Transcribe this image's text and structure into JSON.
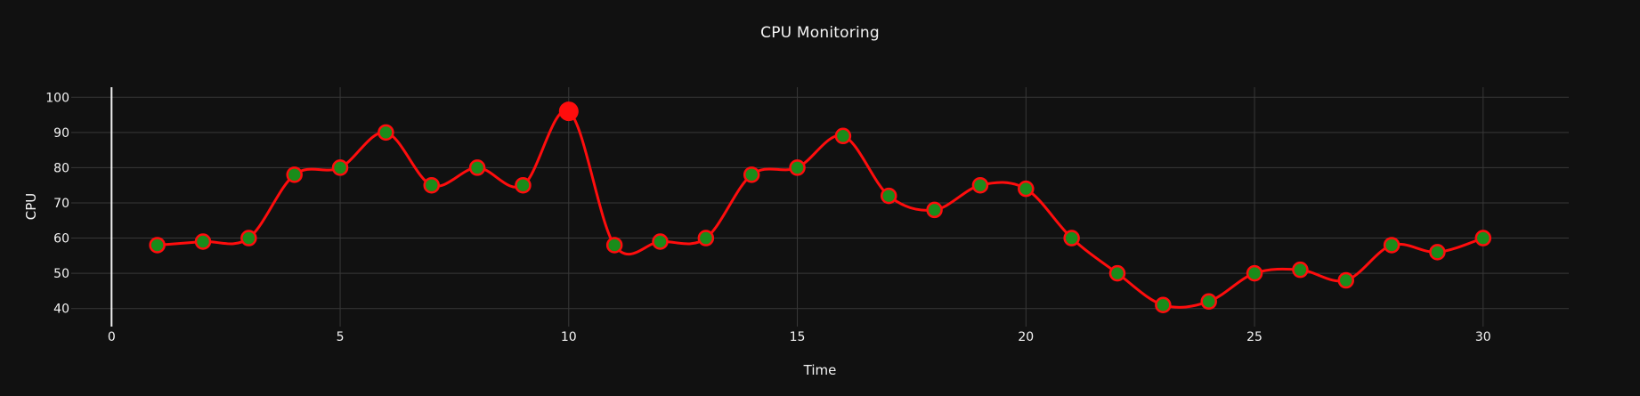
{
  "chart_data": {
    "type": "line",
    "title": "CPU Monitoring",
    "xlabel": "Time",
    "ylabel": "CPU",
    "x": [
      1,
      2,
      3,
      4,
      5,
      6,
      7,
      8,
      9,
      10,
      11,
      12,
      13,
      14,
      15,
      16,
      17,
      18,
      19,
      20,
      21,
      22,
      23,
      24,
      25,
      26,
      27,
      28,
      29,
      30
    ],
    "values": [
      58,
      59,
      60,
      78,
      80,
      90,
      75,
      80,
      75,
      96,
      58,
      59,
      60,
      78,
      80,
      89,
      72,
      68,
      75,
      74,
      60,
      50,
      41,
      42,
      50,
      51,
      48,
      58,
      56,
      60
    ],
    "series_name": "CPU",
    "x_ticks": [
      0,
      5,
      10,
      15,
      20,
      25,
      30
    ],
    "y_ticks": [
      40,
      50,
      60,
      70,
      80,
      90,
      100
    ],
    "xlim": [
      -0.9,
      31.9
    ],
    "ylim": [
      34.5,
      103
    ],
    "grid": true,
    "smooth": true,
    "legend": "none",
    "highlight_point": {
      "x": 10,
      "y": 96
    },
    "colors": {
      "background": "#111111",
      "line": "#ff0d0d",
      "marker_fill": "#1a8c1a",
      "marker_stroke": "#ff0d0d",
      "highlight_fill": "#ff0d0d",
      "grid": "#383838",
      "zero_line": "#f0f0f0",
      "text": "#f5f5f5"
    }
  }
}
